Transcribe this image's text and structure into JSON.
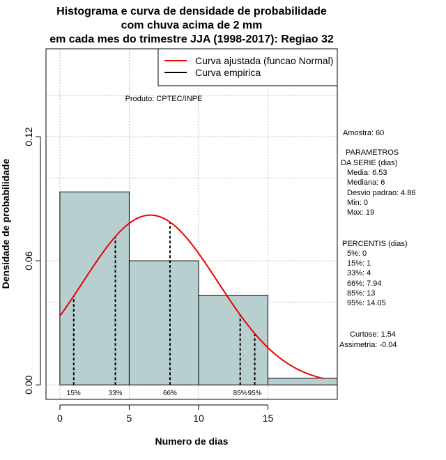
{
  "chart_data": {
    "type": "histogram",
    "title_lines": [
      "Histograma e curva de densidade de probabilidade",
      "com chuva acima de 2 mm",
      "em cada mes do trimestre JJA (1998-2017): Regiao 32"
    ],
    "xlabel": "Numero de dias",
    "ylabel": "Densidade de probabilidade",
    "xlim": [
      -1,
      20
    ],
    "ylim": [
      -0.007,
      0.1625
    ],
    "x_ticks": [
      0,
      5,
      10,
      15
    ],
    "y_ticks": [
      0.0,
      0.06,
      0.12
    ],
    "y_tick_labels": [
      "0.00",
      "0.06",
      "0.12"
    ],
    "x_grid": [
      0,
      5,
      10,
      15
    ],
    "y_grid": [
      0.0,
      0.06,
      0.12
    ],
    "bins": [
      {
        "start": 0,
        "end": 5,
        "density": 0.0933
      },
      {
        "start": 5,
        "end": 10,
        "density": 0.06
      },
      {
        "start": 10,
        "end": 15,
        "density": 0.0433
      },
      {
        "start": 15,
        "end": 20,
        "density": 0.0033
      }
    ],
    "normal_fit": {
      "mean": 6.53,
      "sd": 4.86,
      "x_from": 0,
      "x_to": 19
    },
    "percentiles": [
      {
        "label": "15%",
        "x": 1
      },
      {
        "label": "33%",
        "x": 4
      },
      {
        "label": "66%",
        "x": 7.94
      },
      {
        "label": "85%",
        "x": 13
      },
      {
        "label": "95%",
        "x": 14.05
      }
    ],
    "legend": {
      "position": "top-right",
      "entries": [
        {
          "label": "Curva ajustada (funcao Normal)",
          "color": "#ee0000"
        },
        {
          "label": "Curva empirica",
          "color": "#000000"
        }
      ]
    },
    "annotation": "Produto: CPTEC/INPE",
    "stats_lines": [
      "Amostra: 60",
      "PARAMETROS",
      "DA SERIE (dias)",
      "Media: 6.53",
      "Mediana: 6",
      "Desvio padrao: 4.86",
      "Min: 0",
      "Max: 19",
      "PERCENTIS (dias)",
      "5%: 0",
      "15%: 1",
      "33%: 4",
      "66%: 7.94",
      "85%: 13",
      "95%: 14.05",
      "Curtose: 1.54",
      "Assimetria: -0.04"
    ],
    "colors": {
      "bar_fill": "#b8cfcf",
      "curve": "#ee0000",
      "grid": "#bbbbbb"
    }
  }
}
